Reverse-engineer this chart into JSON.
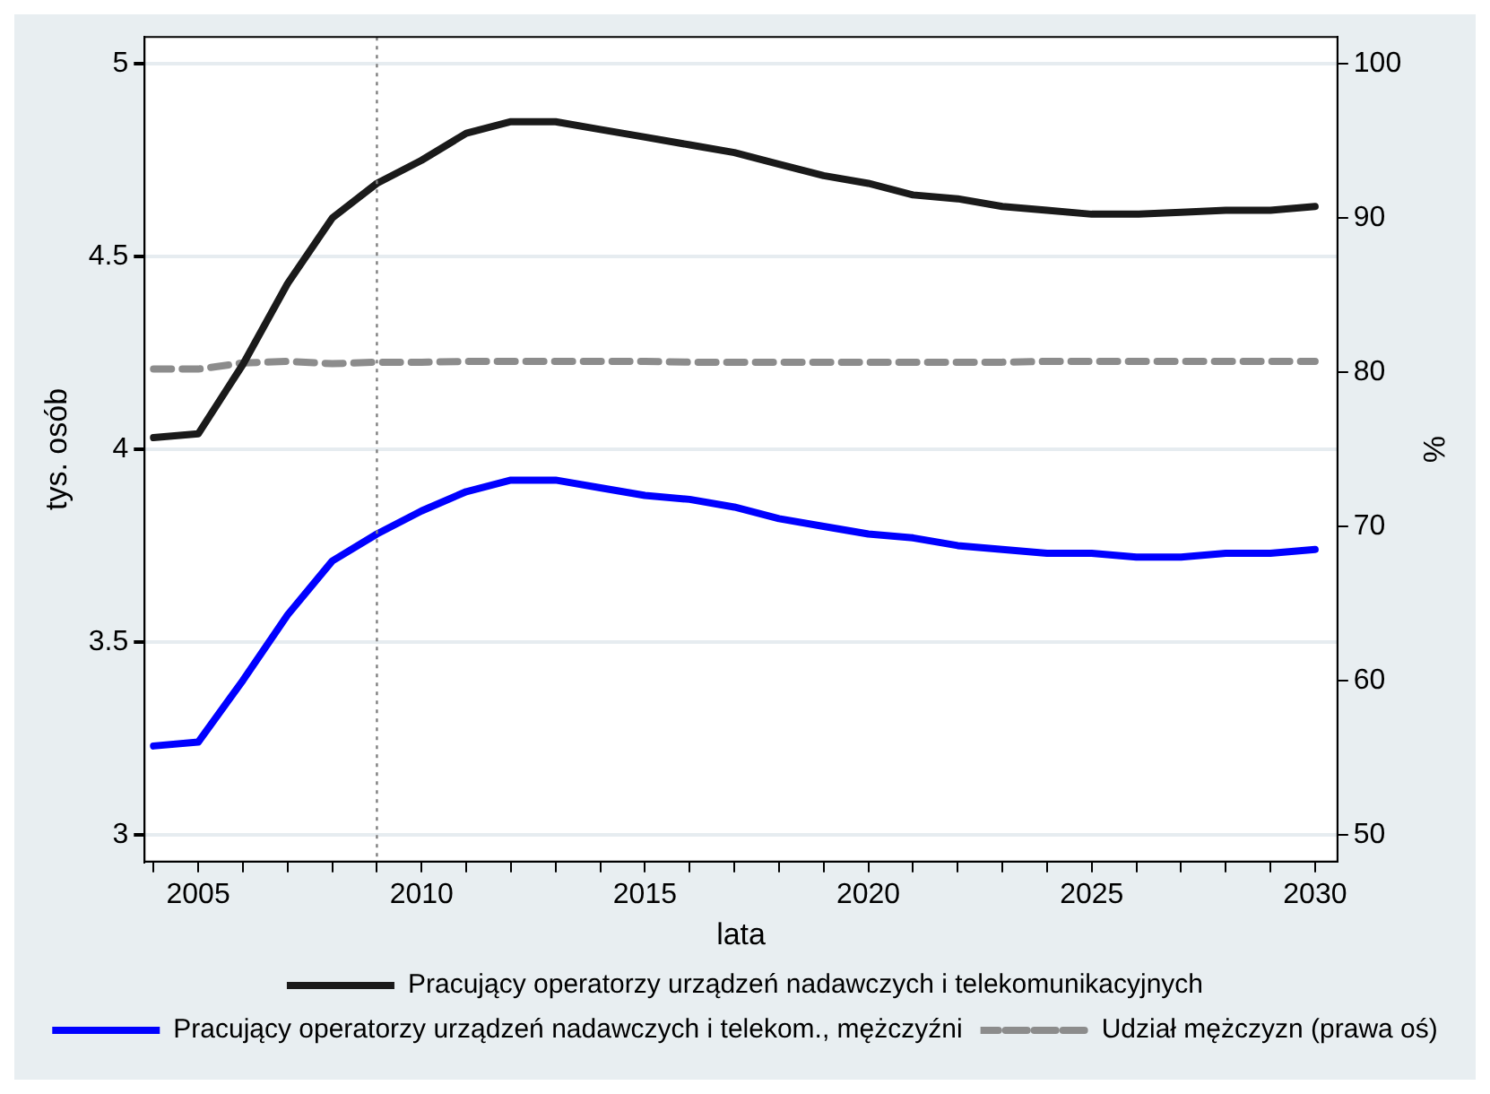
{
  "chart_data": {
    "type": "line",
    "xlabel": "lata",
    "ylabel": "tys. osób",
    "y2label": "%",
    "x": [
      2004,
      2005,
      2006,
      2007,
      2008,
      2009,
      2010,
      2011,
      2012,
      2013,
      2014,
      2015,
      2016,
      2017,
      2018,
      2019,
      2020,
      2021,
      2022,
      2023,
      2024,
      2025,
      2026,
      2027,
      2028,
      2029,
      2030
    ],
    "series": [
      {
        "name": "Pracujący operatorzy urządzeń nadawczych i telekomunikacyjnych",
        "color": "#1a1a1a",
        "values": [
          4.03,
          4.04,
          4.22,
          4.43,
          4.6,
          4.69,
          4.75,
          4.82,
          4.85,
          4.85,
          4.83,
          4.81,
          4.79,
          4.77,
          4.74,
          4.71,
          4.69,
          4.66,
          4.65,
          4.63,
          4.62,
          4.61,
          4.61,
          4.615,
          4.62,
          4.62,
          4.63
        ]
      },
      {
        "name": "Pracujący operatorzy urządzeń nadawczych i telekom., mężczyźni",
        "color": "#0000ff",
        "values": [
          3.23,
          3.24,
          3.4,
          3.57,
          3.71,
          3.78,
          3.84,
          3.89,
          3.92,
          3.92,
          3.9,
          3.88,
          3.87,
          3.85,
          3.82,
          3.8,
          3.78,
          3.77,
          3.75,
          3.74,
          3.73,
          3.73,
          3.72,
          3.72,
          3.73,
          3.73,
          3.74
        ]
      },
      {
        "name": "Udział mężczyzn (prawa oś)",
        "color": "#8c8c8c",
        "axis": "y2",
        "line_style": "dashed",
        "values": [
          80.2,
          80.2,
          80.6,
          80.7,
          80.55,
          80.65,
          80.65,
          80.7,
          80.7,
          80.7,
          80.7,
          80.7,
          80.65,
          80.65,
          80.65,
          80.65,
          80.65,
          80.65,
          80.65,
          80.65,
          80.7,
          80.7,
          80.7,
          80.7,
          80.7,
          80.7,
          80.7
        ]
      }
    ],
    "xlim": [
      2003.8,
      2030.5
    ],
    "xticks": [
      {
        "value": 2004,
        "label": null
      },
      2005,
      {
        "value": 2006,
        "label": null
      },
      {
        "value": 2007,
        "label": null
      },
      {
        "value": 2008,
        "label": null
      },
      {
        "value": 2009,
        "label": null
      },
      2010,
      {
        "value": 2011,
        "label": null
      },
      {
        "value": 2012,
        "label": null
      },
      {
        "value": 2013,
        "label": null
      },
      {
        "value": 2014,
        "label": null
      },
      2015,
      {
        "value": 2016,
        "label": null
      },
      {
        "value": 2017,
        "label": null
      },
      {
        "value": 2018,
        "label": null
      },
      {
        "value": 2019,
        "label": null
      },
      2020,
      {
        "value": 2021,
        "label": null
      },
      {
        "value": 2022,
        "label": null
      },
      {
        "value": 2023,
        "label": null
      },
      {
        "value": 2024,
        "label": null
      },
      2025,
      {
        "value": 2026,
        "label": null
      },
      {
        "value": 2027,
        "label": null
      },
      {
        "value": 2028,
        "label": null
      },
      {
        "value": 2029,
        "label": null
      },
      2030
    ],
    "ylim": [
      2.93,
      5.07
    ],
    "yticks": [
      3,
      3.5,
      4,
      4.5,
      5
    ],
    "y2lim": [
      48.25,
      101.75
    ],
    "y2ticks": [
      50,
      60,
      70,
      80,
      90,
      100
    ],
    "ref_lines": [
      {
        "axis": "x",
        "value": 2009,
        "color": "#808080",
        "line_style": "dotted"
      }
    ],
    "grid": "y",
    "legend": "bottom",
    "marker": "none",
    "line_style": "solid"
  }
}
